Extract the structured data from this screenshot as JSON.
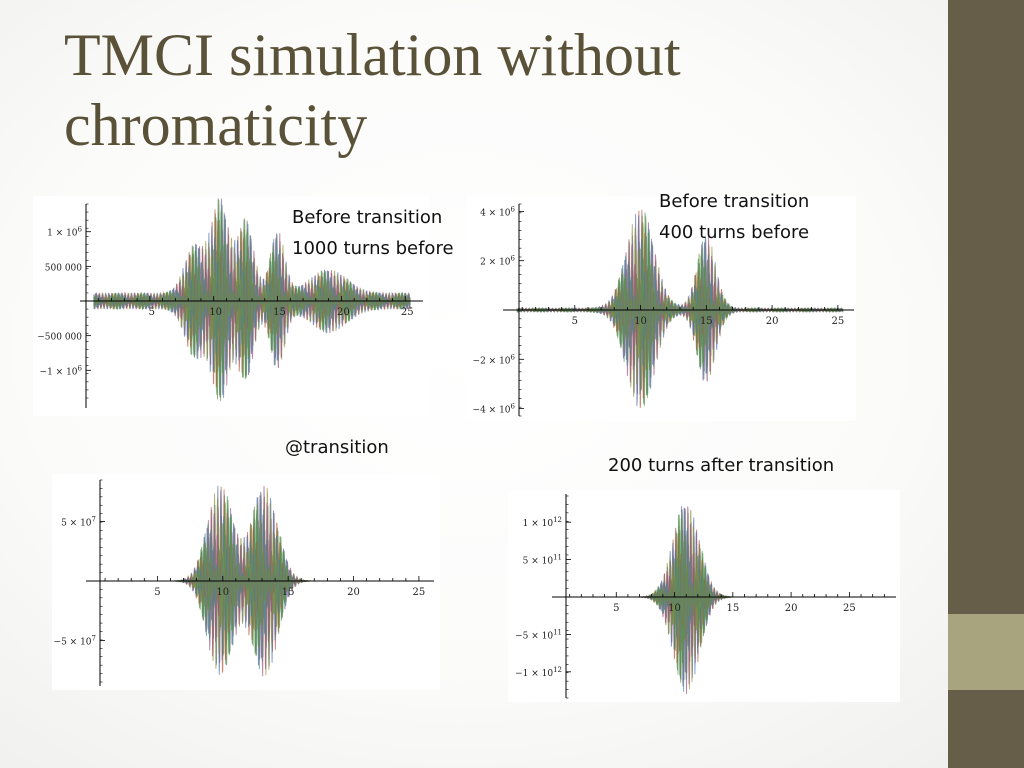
{
  "slide": {
    "title_lines": [
      "TMCI simulation without",
      "chromaticity"
    ],
    "accent_colors": [
      "#665e48",
      "#a8a47e"
    ],
    "title_color": "#5a5238"
  },
  "captions": {
    "tl": [
      "Before transition",
      "1000 turns before"
    ],
    "tr": [
      "Before transition",
      "400 turns before"
    ],
    "bl": [
      "@transition"
    ],
    "br": [
      "200 turns after transition"
    ]
  },
  "chart_data": [
    {
      "type": "line",
      "caption": "Before transition 1000 turns before",
      "xlim": [
        0,
        26
      ],
      "ylim": [
        -1400000,
        1400000
      ],
      "x_ticks": [
        5,
        10,
        15,
        20,
        25
      ],
      "y_ticks": [
        1000000,
        500000,
        -500000,
        -1000000
      ],
      "y_tick_labels": [
        "1 × 10^6",
        "500 000",
        "−500 000",
        "−1 × 10^6"
      ],
      "envelope_peaks": [
        {
          "x": 10.5,
          "amp": 1350000,
          "width": 1.0
        },
        {
          "x": 12.5,
          "amp": 1050000,
          "width": 0.9
        },
        {
          "x": 15.0,
          "amp": 900000,
          "width": 0.8
        },
        {
          "x": 8.5,
          "amp": 700000,
          "width": 1.1
        },
        {
          "x": 19.0,
          "amp": 350000,
          "width": 2.0
        }
      ],
      "baseline_amp": 120000
    },
    {
      "type": "line",
      "caption": "Before transition 400 turns before",
      "xlim": [
        0,
        26
      ],
      "ylim": [
        -4300000,
        4300000
      ],
      "x_ticks": [
        5,
        10,
        15,
        20,
        25
      ],
      "y_ticks": [
        4000000,
        2000000,
        -2000000,
        -4000000
      ],
      "y_tick_labels": [
        "4 × 10^6",
        "2 × 10^6",
        "−2 × 10^6",
        "−4 × 10^6"
      ],
      "envelope_peaks": [
        {
          "x": 10.0,
          "amp": 4100000,
          "width": 1.5
        },
        {
          "x": 15.0,
          "amp": 3000000,
          "width": 1.0
        }
      ],
      "baseline_amp": 80000
    },
    {
      "type": "line",
      "caption": "@transition",
      "xlim": [
        0,
        26
      ],
      "ylim": [
        -85000000,
        85000000
      ],
      "x_ticks": [
        5,
        10,
        15,
        20,
        25
      ],
      "y_ticks": [
        50000000,
        -50000000
      ],
      "y_tick_labels": [
        "5 × 10^7",
        "−5 × 10^7"
      ],
      "envelope_peaks": [
        {
          "x": 9.8,
          "amp": 82000000,
          "width": 1.4
        },
        {
          "x": 13.2,
          "amp": 82000000,
          "width": 1.4
        }
      ],
      "baseline_amp": 0
    },
    {
      "type": "line",
      "caption": "200 turns after transition",
      "xlim": [
        0,
        29
      ],
      "ylim": [
        -1350000000000,
        1350000000000
      ],
      "x_ticks": [
        5,
        10,
        15,
        20,
        25
      ],
      "y_ticks": [
        1000000000000,
        500000000000,
        -500000000000,
        -1000000000000
      ],
      "y_tick_labels": [
        "1 × 10^12",
        "5 × 10^11",
        "−5 × 10^11",
        "−1 × 10^12"
      ],
      "envelope_peaks": [
        {
          "x": 11.0,
          "amp": 1300000000000,
          "width": 1.6
        }
      ],
      "baseline_amp": 0
    }
  ]
}
